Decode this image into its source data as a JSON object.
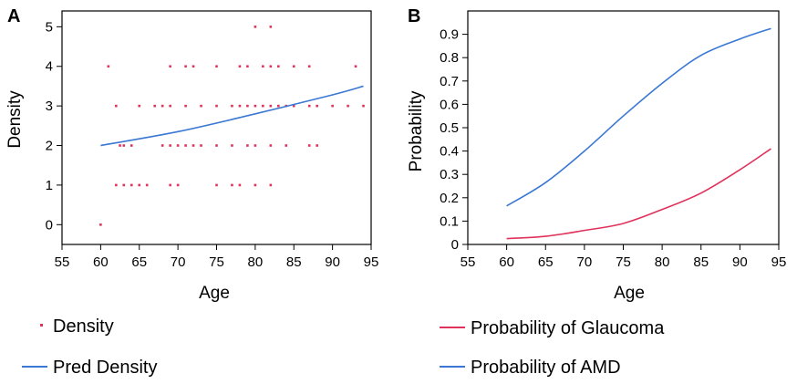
{
  "colors": {
    "density": "#e0325a",
    "pred": "#3a78d4",
    "glaucoma": "#e0325a",
    "amd": "#3a78d4",
    "axis": "#000000"
  },
  "chart_data": [
    {
      "panel": "A",
      "type": "scatter",
      "xlabel": "Age",
      "ylabel": "Density",
      "xlim": [
        55,
        95
      ],
      "ylim": [
        -0.5,
        5.4
      ],
      "x_ticks": [
        "55",
        "60",
        "65",
        "70",
        "75",
        "80",
        "85",
        "90",
        "95"
      ],
      "y_ticks": [
        "0",
        "1",
        "2",
        "3",
        "4",
        "5"
      ],
      "grid": false,
      "legend_position": "bottom",
      "series": [
        {
          "name": "Density",
          "kind": "points",
          "color": "#e0325a",
          "points": [
            [
              60,
              0
            ],
            [
              62,
              1
            ],
            [
              63,
              1
            ],
            [
              64,
              1
            ],
            [
              65,
              1
            ],
            [
              66,
              1
            ],
            [
              69,
              1
            ],
            [
              70,
              1
            ],
            [
              75,
              1
            ],
            [
              77,
              1
            ],
            [
              78,
              1
            ],
            [
              80,
              1
            ],
            [
              82,
              1
            ],
            [
              62.5,
              2
            ],
            [
              63,
              2
            ],
            [
              64,
              2
            ],
            [
              68,
              2
            ],
            [
              69,
              2
            ],
            [
              70,
              2
            ],
            [
              71,
              2
            ],
            [
              72,
              2
            ],
            [
              73,
              2
            ],
            [
              75,
              2
            ],
            [
              77,
              2
            ],
            [
              79,
              2
            ],
            [
              80,
              2
            ],
            [
              82,
              2
            ],
            [
              84,
              2
            ],
            [
              87,
              2
            ],
            [
              88,
              2
            ],
            [
              62,
              3
            ],
            [
              65,
              3
            ],
            [
              67,
              3
            ],
            [
              68,
              3
            ],
            [
              69,
              3
            ],
            [
              71,
              3
            ],
            [
              73,
              3
            ],
            [
              75,
              3
            ],
            [
              77,
              3
            ],
            [
              78,
              3
            ],
            [
              79,
              3
            ],
            [
              80,
              3
            ],
            [
              81,
              3
            ],
            [
              82,
              3
            ],
            [
              83,
              3
            ],
            [
              84,
              3
            ],
            [
              85,
              3
            ],
            [
              87,
              3
            ],
            [
              88,
              3
            ],
            [
              90,
              3
            ],
            [
              92,
              3
            ],
            [
              94,
              3
            ],
            [
              61,
              4
            ],
            [
              69,
              4
            ],
            [
              71,
              4
            ],
            [
              72,
              4
            ],
            [
              75,
              4
            ],
            [
              78,
              4
            ],
            [
              79,
              4
            ],
            [
              81,
              4
            ],
            [
              82,
              4
            ],
            [
              83,
              4
            ],
            [
              85,
              4
            ],
            [
              87,
              4
            ],
            [
              93,
              4
            ],
            [
              80,
              5
            ],
            [
              82,
              5
            ]
          ]
        },
        {
          "name": "Pred Density",
          "kind": "line",
          "color": "#3a78d4",
          "points": [
            [
              60,
              2.0
            ],
            [
              70,
              2.35
            ],
            [
              80,
              2.8
            ],
            [
              90,
              3.28
            ],
            [
              94,
              3.5
            ]
          ]
        }
      ]
    },
    {
      "panel": "B",
      "type": "line",
      "xlabel": "Age",
      "ylabel": "Probability",
      "xlim": [
        55,
        95
      ],
      "ylim": [
        0,
        1
      ],
      "x_ticks": [
        "55",
        "60",
        "65",
        "70",
        "75",
        "80",
        "85",
        "90",
        "95"
      ],
      "y_ticks": [
        "0",
        "0.1",
        "0.2",
        "0.3",
        "0.4",
        "0.5",
        "0.6",
        "0.7",
        "0.8",
        "0.9"
      ],
      "grid": false,
      "legend_position": "bottom",
      "series": [
        {
          "name": "Probability of Glaucoma",
          "color": "#e0325a",
          "points": [
            [
              60,
              0.025
            ],
            [
              65,
              0.035
            ],
            [
              70,
              0.06
            ],
            [
              75,
              0.09
            ],
            [
              80,
              0.15
            ],
            [
              85,
              0.22
            ],
            [
              90,
              0.32
            ],
            [
              94,
              0.41
            ]
          ]
        },
        {
          "name": "Probability of AMD",
          "color": "#3a78d4",
          "points": [
            [
              60,
              0.165
            ],
            [
              65,
              0.265
            ],
            [
              70,
              0.4
            ],
            [
              75,
              0.55
            ],
            [
              80,
              0.69
            ],
            [
              85,
              0.81
            ],
            [
              90,
              0.88
            ],
            [
              94,
              0.925
            ]
          ]
        }
      ]
    }
  ]
}
